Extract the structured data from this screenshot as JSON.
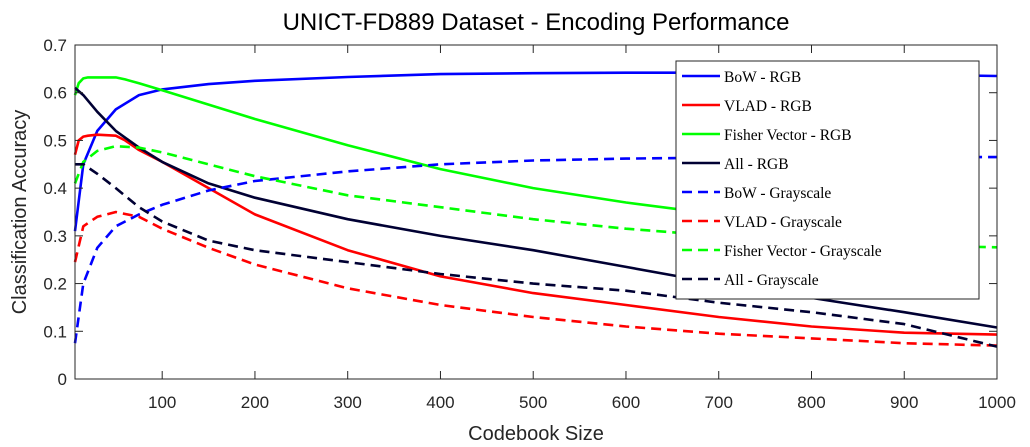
{
  "chart_data": {
    "type": "line",
    "title": "UNICT-FD889 Dataset - Encoding Performance",
    "xlabel": "Codebook Size",
    "ylabel": "Classification Accuracy",
    "xlim": [
      6,
      1000
    ],
    "ylim": [
      0,
      0.7
    ],
    "xticks": [
      100,
      200,
      300,
      400,
      500,
      600,
      700,
      800,
      900,
      1000
    ],
    "yticks": [
      0,
      0.1,
      0.2,
      0.3,
      0.4,
      0.5,
      0.6,
      0.7
    ],
    "xtick_labels": [
      "100",
      "200",
      "300",
      "400",
      "500",
      "600",
      "700",
      "800",
      "900",
      "1000"
    ],
    "ytick_labels": [
      "0",
      "0.1",
      "0.2",
      "0.3",
      "0.4",
      "0.5",
      "0.6",
      "0.7"
    ],
    "grid": false,
    "legend_position": "top-right",
    "series": [
      {
        "name": "BoW - RGB",
        "color": "#0000ff",
        "dash": "solid",
        "x": [
          6,
          15,
          30,
          50,
          75,
          100,
          150,
          200,
          300,
          400,
          500,
          600,
          700,
          800,
          900,
          1000
        ],
        "y": [
          0.31,
          0.45,
          0.52,
          0.565,
          0.595,
          0.607,
          0.618,
          0.625,
          0.633,
          0.639,
          0.641,
          0.642,
          0.642,
          0.641,
          0.638,
          0.635
        ]
      },
      {
        "name": "VLAD - RGB",
        "color": "#ff0000",
        "dash": "solid",
        "x": [
          6,
          10,
          15,
          20,
          30,
          50,
          60,
          75,
          100,
          150,
          200,
          300,
          400,
          500,
          600,
          700,
          800,
          900,
          1000
        ],
        "y": [
          0.47,
          0.5,
          0.508,
          0.51,
          0.512,
          0.51,
          0.5,
          0.48,
          0.455,
          0.4,
          0.345,
          0.27,
          0.215,
          0.18,
          0.155,
          0.13,
          0.11,
          0.097,
          0.093
        ]
      },
      {
        "name": "Fisher Vector - RGB",
        "color": "#00ff00",
        "dash": "solid",
        "x": [
          6,
          10,
          15,
          20,
          30,
          50,
          60,
          75,
          100,
          150,
          200,
          300,
          400,
          500,
          600,
          700
        ],
        "y": [
          0.595,
          0.62,
          0.63,
          0.632,
          0.632,
          0.632,
          0.628,
          0.62,
          0.605,
          0.575,
          0.545,
          0.49,
          0.44,
          0.4,
          0.37,
          0.345
        ]
      },
      {
        "name": "All - RGB",
        "color": "#000033",
        "dash": "solid",
        "x": [
          6,
          15,
          30,
          50,
          75,
          100,
          150,
          200,
          300,
          400,
          500,
          600,
          700,
          800,
          900,
          1000
        ],
        "y": [
          0.61,
          0.595,
          0.56,
          0.52,
          0.485,
          0.455,
          0.41,
          0.38,
          0.335,
          0.3,
          0.27,
          0.235,
          0.2,
          0.17,
          0.14,
          0.108
        ]
      },
      {
        "name": "BoW - Grayscale",
        "color": "#0000ff",
        "dash": "dashed",
        "x": [
          6,
          15,
          30,
          50,
          75,
          100,
          150,
          200,
          300,
          400,
          500,
          600,
          700,
          800,
          900,
          1000
        ],
        "y": [
          0.075,
          0.2,
          0.275,
          0.32,
          0.345,
          0.365,
          0.395,
          0.415,
          0.435,
          0.45,
          0.458,
          0.462,
          0.464,
          0.465,
          0.465,
          0.465
        ]
      },
      {
        "name": "VLAD - Grayscale",
        "color": "#ff0000",
        "dash": "dashed",
        "x": [
          6,
          15,
          30,
          50,
          75,
          100,
          150,
          200,
          300,
          400,
          500,
          600,
          700,
          800,
          900,
          1000
        ],
        "y": [
          0.245,
          0.32,
          0.34,
          0.35,
          0.34,
          0.315,
          0.275,
          0.24,
          0.19,
          0.155,
          0.13,
          0.11,
          0.095,
          0.085,
          0.075,
          0.07
        ]
      },
      {
        "name": "Fisher Vector - Grayscale",
        "color": "#00ff00",
        "dash": "dashed",
        "x": [
          6,
          15,
          30,
          50,
          75,
          100,
          150,
          200,
          300,
          400,
          500,
          600,
          700,
          800,
          900,
          1000
        ],
        "y": [
          0.41,
          0.455,
          0.478,
          0.488,
          0.485,
          0.475,
          0.45,
          0.425,
          0.385,
          0.36,
          0.335,
          0.315,
          0.3,
          0.29,
          0.28,
          0.276
        ]
      },
      {
        "name": "All - Grayscale",
        "color": "#000033",
        "dash": "dashed",
        "x": [
          6,
          15,
          30,
          50,
          75,
          100,
          150,
          200,
          300,
          400,
          500,
          600,
          700,
          800,
          900,
          1000
        ],
        "y": [
          0.45,
          0.45,
          0.43,
          0.4,
          0.36,
          0.33,
          0.29,
          0.27,
          0.245,
          0.22,
          0.2,
          0.185,
          0.16,
          0.14,
          0.115,
          0.068
        ]
      }
    ]
  }
}
